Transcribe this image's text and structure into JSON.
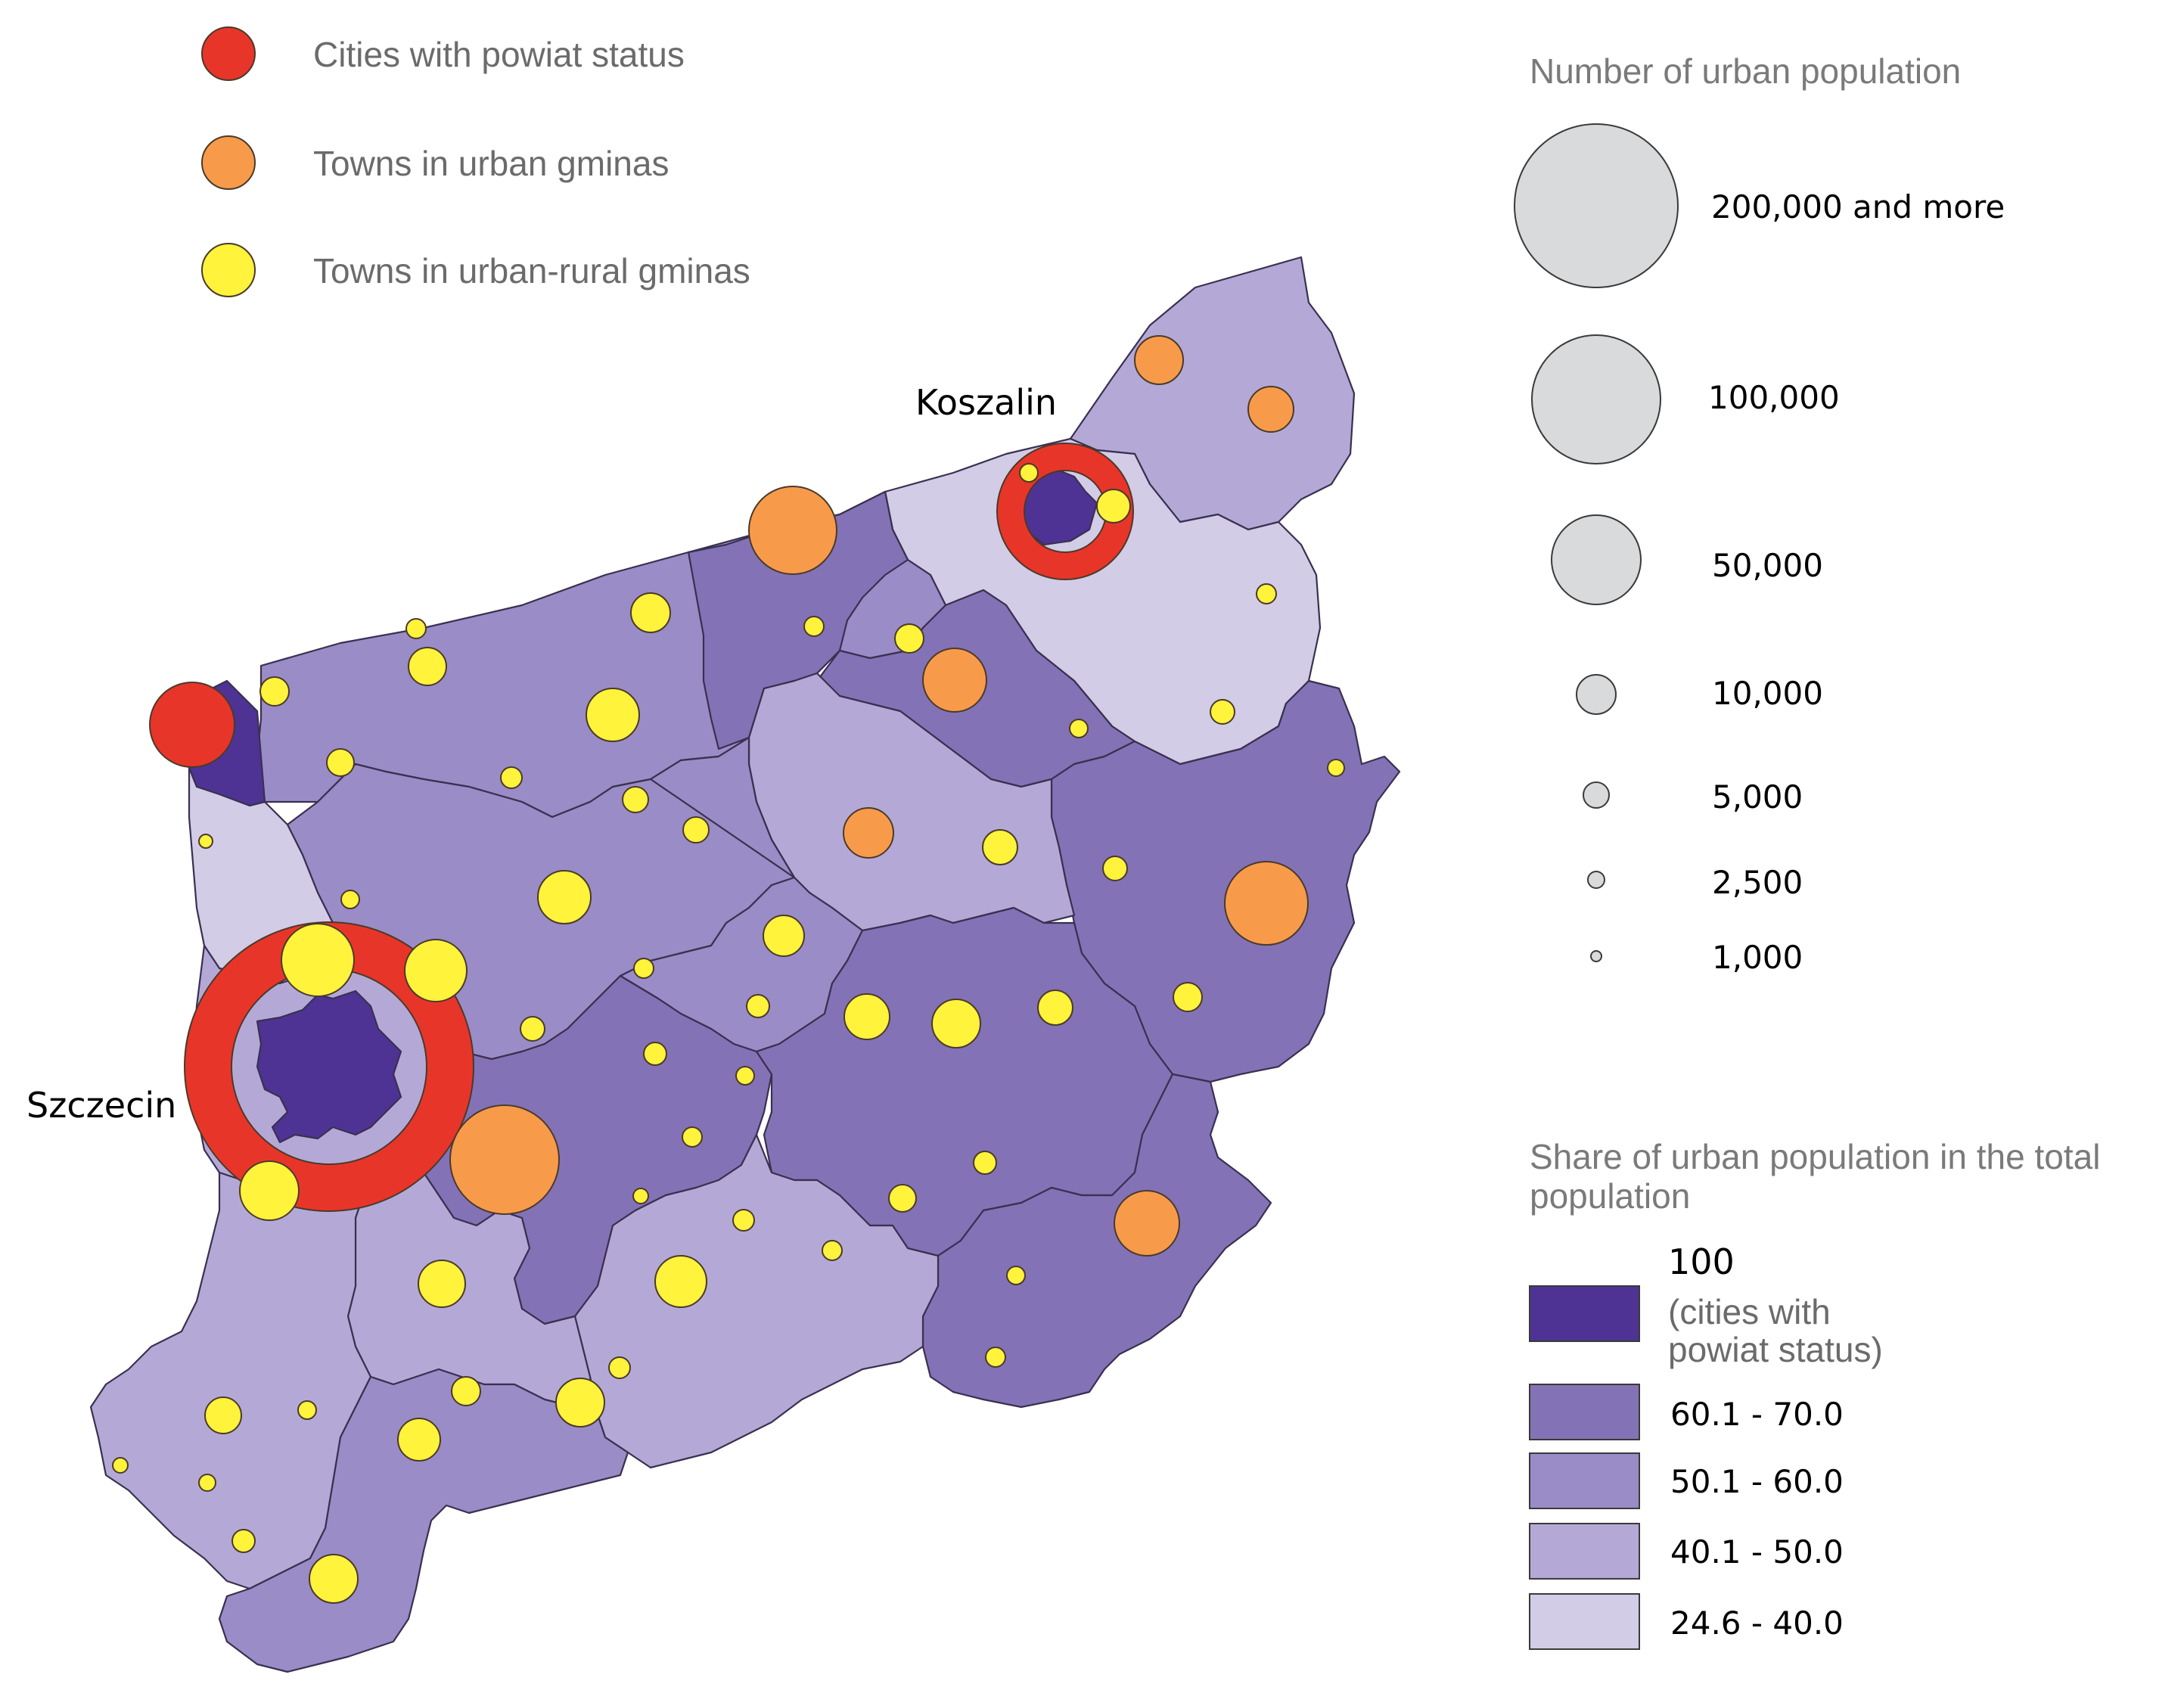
{
  "map": {
    "city_labels": [
      {
        "id": "koszalin",
        "text": "Koszalin"
      },
      {
        "id": "szczecin",
        "text": "Szczecin"
      }
    ],
    "categories": {
      "cities_powiat": {
        "label": "Cities with powiat status",
        "color": "#e8352a"
      },
      "towns_urban": {
        "label": "Towns in urban gminas",
        "color": "#f79b4b"
      },
      "towns_urban_rural": {
        "label": "Towns in urban-rural gminas",
        "color": "#fff33b"
      }
    },
    "choropleth_classes": [
      {
        "id": "c100",
        "label": "100",
        "sublabel_lines": [
          "(cities with",
          "powiat status)"
        ],
        "color": "#4e3395"
      },
      {
        "id": "c60",
        "label": "60.1 - 70.0",
        "color": "#8472b6"
      },
      {
        "id": "c50",
        "label": "50.1 - 60.0",
        "color": "#9a8cc6"
      },
      {
        "id": "c40",
        "label": "40.1 - 50.0",
        "color": "#b4a9d6"
      },
      {
        "id": "c24",
        "label": "24.6 - 40.0",
        "color": "#d2cce6"
      }
    ],
    "size_legend": {
      "title": "Number of urban population",
      "entries": [
        {
          "label": "200,000 and more",
          "value": 200000
        },
        {
          "label": "100,000",
          "value": 100000
        },
        {
          "label": "50,000",
          "value": 50000
        },
        {
          "label": "10,000",
          "value": 10000
        },
        {
          "label": "5,000",
          "value": 5000
        },
        {
          "label": "2,500",
          "value": 2500
        },
        {
          "label": "1,000",
          "value": 1000
        }
      ],
      "symbol_color": "#d8dadb"
    },
    "share_legend": {
      "title_lines": [
        "Share of urban population in the total",
        "population"
      ]
    }
  }
}
